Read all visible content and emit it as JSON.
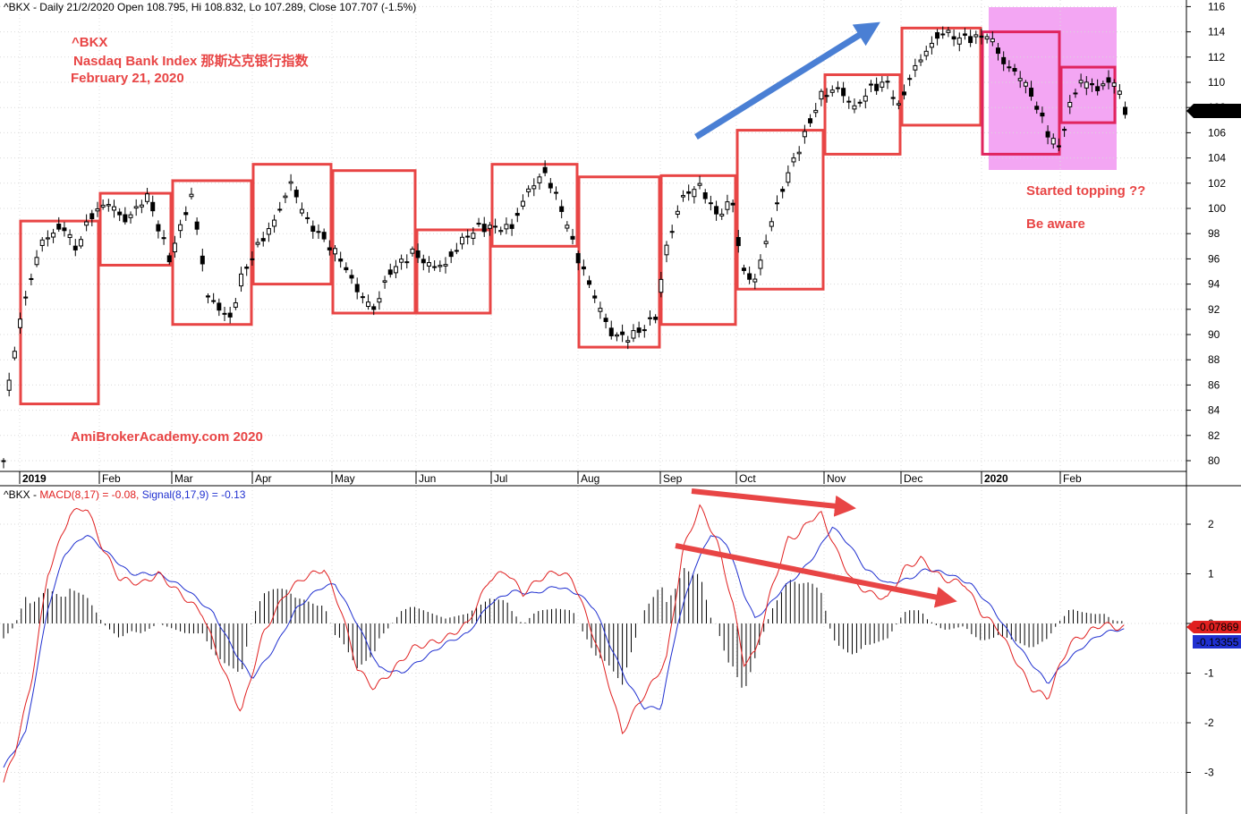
{
  "price_header": "^BKX - Daily 21/2/2020 Open 108.795, Hi 108.832, Lo 107.289, Close 107.707 (-1.5%)",
  "macd_header": {
    "prefix": "^BKX - ",
    "macd": "MACD(8,17) = -0.08, ",
    "signal": "Signal(8,17,9) = -0.13"
  },
  "annotations": {
    "ticker": "^BKX",
    "name": "Nasdaq Bank Index  那斯达克银行指数",
    "date": "February 21, 2020",
    "site": "AmiBrokerAcademy.com   2020",
    "topping": "Started topping  ??",
    "aware": "Be aware"
  },
  "last_price_label": "107.707",
  "macd_last_label": "-0.07869",
  "signal_last_label": "-0.13355",
  "colors": {
    "box": "#e84545",
    "box_recent": "#e0245e",
    "highlight": "#f3a6f3",
    "arrow_up": "#4a7fd4",
    "arrow_down": "#e84545",
    "annot_text": "#e84545",
    "macd_line": "#e02020",
    "signal_line": "#2030d0"
  },
  "months": [
    "2019",
    "Feb",
    "Mar",
    "Apr",
    "May",
    "Jun",
    "Jul",
    "Aug",
    "Sep",
    "Oct",
    "Nov",
    "Dec",
    "2020",
    "Feb"
  ],
  "price_axis_ticks": [
    "116",
    "114",
    "112",
    "110",
    "108",
    "106",
    "104",
    "102",
    "100",
    "98",
    "96",
    "94",
    "92",
    "90",
    "88",
    "86",
    "84",
    "82",
    "80"
  ],
  "macd_axis_ticks": [
    "2",
    "1",
    "0",
    "-1",
    "-2",
    "-3"
  ],
  "chart_data": [
    {
      "type": "candlestick",
      "title": "^BKX - Daily 21/2/2020",
      "ylim": [
        79,
        116.5
      ],
      "x_categories": [
        "2019",
        "Feb",
        "Mar",
        "Apr",
        "May",
        "Jun",
        "Jul",
        "Aug",
        "Sep",
        "Oct",
        "Nov",
        "Dec",
        "2020",
        "Feb"
      ],
      "monthly_ranges": [
        {
          "month": "2019",
          "low": 84.5,
          "high": 99
        },
        {
          "month": "Feb",
          "low": 95.5,
          "high": 101.2
        },
        {
          "month": "Mar",
          "low": 90.8,
          "high": 102.2
        },
        {
          "month": "Apr",
          "low": 94,
          "high": 103.5
        },
        {
          "month": "May",
          "low": 91.7,
          "high": 103
        },
        {
          "month": "Jun",
          "low": 91.7,
          "high": 98.3
        },
        {
          "month": "Jul",
          "low": 97,
          "high": 103.5
        },
        {
          "month": "Aug",
          "low": 89,
          "high": 102.5
        },
        {
          "month": "Sep",
          "low": 90.8,
          "high": 102.6
        },
        {
          "month": "Oct",
          "low": 93.6,
          "high": 106.2
        },
        {
          "month": "Nov",
          "low": 104.3,
          "high": 110.6
        },
        {
          "month": "Dec",
          "low": 106.6,
          "high": 114.3
        },
        {
          "month": "2020",
          "low": 104.3,
          "high": 114
        },
        {
          "month": "Feb",
          "low": 106.8,
          "high": 111.2
        }
      ],
      "last": {
        "open": 108.795,
        "high": 108.832,
        "low": 107.289,
        "close": 107.707
      },
      "series": [
        {
          "name": "^BKX",
          "keypoints": [
            [
              0,
              80
            ],
            [
              3,
              85
            ],
            [
              10,
              89
            ],
            [
              20,
              93
            ],
            [
              35,
              97.5
            ],
            [
              55,
              98.5
            ],
            [
              65,
              96.8
            ],
            [
              80,
              99.5
            ],
            [
              95,
              100.5
            ],
            [
              110,
              99
            ],
            [
              130,
              101
            ],
            [
              150,
              96
            ],
            [
              170,
              101
            ],
            [
              185,
              93
            ],
            [
              205,
              91.2
            ],
            [
              215,
              94.5
            ],
            [
              230,
              97
            ],
            [
              245,
              99
            ],
            [
              260,
              102
            ],
            [
              275,
              99
            ],
            [
              290,
              97.5
            ],
            [
              305,
              96
            ],
            [
              320,
              93.5
            ],
            [
              335,
              92
            ],
            [
              350,
              95
            ],
            [
              370,
              96.5
            ],
            [
              385,
              95.5
            ],
            [
              400,
              95.5
            ],
            [
              415,
              97.5
            ],
            [
              430,
              98.5
            ],
            [
              445,
              98.5
            ],
            [
              460,
              98.5
            ],
            [
              475,
              101.5
            ],
            [
              490,
              102.8
            ],
            [
              505,
              100
            ],
            [
              520,
              96
            ],
            [
              535,
              93
            ],
            [
              550,
              90
            ],
            [
              565,
              89.8
            ],
            [
              580,
              90.5
            ],
            [
              590,
              91.5
            ],
            [
              600,
              97
            ],
            [
              615,
              101
            ],
            [
              630,
              101.8
            ],
            [
              645,
              99.5
            ],
            [
              660,
              100.5
            ],
            [
              668,
              95
            ],
            [
              680,
              94.3
            ],
            [
              695,
              99
            ],
            [
              710,
              102.8
            ],
            [
              725,
              105.8
            ],
            [
              740,
              109
            ],
            [
              755,
              109.5
            ],
            [
              770,
              108
            ],
            [
              785,
              109.5
            ],
            [
              800,
              110
            ],
            [
              810,
              108
            ],
            [
              822,
              110.8
            ],
            [
              835,
              112.5
            ],
            [
              850,
              114
            ],
            [
              865,
              113.5
            ],
            [
              880,
              113.5
            ],
            [
              892,
              113.8
            ],
            [
              905,
              111.5
            ],
            [
              920,
              110.5
            ],
            [
              930,
              109
            ],
            [
              945,
              106
            ],
            [
              955,
              104.8
            ],
            [
              965,
              108.2
            ],
            [
              975,
              110.2
            ],
            [
              990,
              109.5
            ],
            [
              1005,
              110.2
            ],
            [
              1015,
              107.7
            ]
          ]
        }
      ]
    },
    {
      "type": "line",
      "title": "^BKX - MACD(8,17) = -0.08, Signal(8,17,9) = -0.13",
      "ylim": [
        -3.4,
        2.7
      ],
      "series": [
        {
          "name": "MACD(8,17)",
          "keypoints": [
            [
              0,
              -3.2
            ],
            [
              10,
              -2.6
            ],
            [
              25,
              -1.2
            ],
            [
              40,
              1
            ],
            [
              60,
              2.2
            ],
            [
              75,
              2.35
            ],
            [
              90,
              1.5
            ],
            [
              105,
              0.9
            ],
            [
              125,
              0.8
            ],
            [
              140,
              1
            ],
            [
              160,
              0.6
            ],
            [
              180,
              0.2
            ],
            [
              200,
              -1
            ],
            [
              215,
              -1.8
            ],
            [
              235,
              -0.2
            ],
            [
              255,
              0.6
            ],
            [
              270,
              0.9
            ],
            [
              290,
              1.1
            ],
            [
              305,
              0.3
            ],
            [
              320,
              -0.9
            ],
            [
              335,
              -1.3
            ],
            [
              350,
              -1
            ],
            [
              370,
              -0.5
            ],
            [
              385,
              -0.4
            ],
            [
              400,
              -0.3
            ],
            [
              420,
              0
            ],
            [
              440,
              0.9
            ],
            [
              455,
              1.05
            ],
            [
              470,
              0.6
            ],
            [
              485,
              0.9
            ],
            [
              500,
              1.05
            ],
            [
              515,
              0.9
            ],
            [
              530,
              0
            ],
            [
              545,
              -1
            ],
            [
              560,
              -2.2
            ],
            [
              575,
              -1.6
            ],
            [
              590,
              -1.1
            ],
            [
              600,
              -0.7
            ],
            [
              615,
              1.5
            ],
            [
              630,
              2.35
            ],
            [
              645,
              1.7
            ],
            [
              660,
              0.4
            ],
            [
              670,
              -0.8
            ],
            [
              680,
              -0.6
            ],
            [
              695,
              0.7
            ],
            [
              710,
              1.7
            ],
            [
              720,
              1.8
            ],
            [
              730,
              2.1
            ],
            [
              740,
              2.2
            ],
            [
              755,
              1.4
            ],
            [
              770,
              0.8
            ],
            [
              785,
              0.6
            ],
            [
              800,
              0.5
            ],
            [
              815,
              1.1
            ],
            [
              830,
              1.3
            ],
            [
              850,
              0.9
            ],
            [
              870,
              0.8
            ],
            [
              885,
              0.2
            ],
            [
              900,
              -0.1
            ],
            [
              915,
              -0.7
            ],
            [
              930,
              -1.3
            ],
            [
              945,
              -1.5
            ],
            [
              955,
              -0.9
            ],
            [
              965,
              -0.4
            ],
            [
              980,
              -0.2
            ],
            [
              995,
              0
            ],
            [
              1005,
              -0.08
            ]
          ]
        },
        {
          "name": "Signal(8,17,9)",
          "keypoints": [
            [
              0,
              -2.9
            ],
            [
              20,
              -2.2
            ],
            [
              40,
              0.3
            ],
            [
              55,
              1.4
            ],
            [
              75,
              1.8
            ],
            [
              95,
              1.4
            ],
            [
              115,
              1
            ],
            [
              140,
              1
            ],
            [
              165,
              0.7
            ],
            [
              190,
              0.2
            ],
            [
              210,
              -0.6
            ],
            [
              225,
              -1.1
            ],
            [
              245,
              -0.5
            ],
            [
              265,
              0.3
            ],
            [
              285,
              0.7
            ],
            [
              300,
              0.8
            ],
            [
              320,
              0
            ],
            [
              340,
              -0.9
            ],
            [
              360,
              -1
            ],
            [
              380,
              -0.7
            ],
            [
              400,
              -0.4
            ],
            [
              420,
              -0.2
            ],
            [
              440,
              0.4
            ],
            [
              460,
              0.65
            ],
            [
              480,
              0.6
            ],
            [
              500,
              0.75
            ],
            [
              520,
              0.6
            ],
            [
              535,
              0.3
            ],
            [
              550,
              -0.5
            ],
            [
              565,
              -1.2
            ],
            [
              580,
              -1.7
            ],
            [
              595,
              -1.7
            ],
            [
              610,
              0
            ],
            [
              625,
              1.1
            ],
            [
              640,
              1.8
            ],
            [
              655,
              1.6
            ],
            [
              670,
              0.6
            ],
            [
              680,
              0.1
            ],
            [
              690,
              0.3
            ],
            [
              705,
              0.7
            ],
            [
              720,
              1
            ],
            [
              735,
              1.4
            ],
            [
              750,
              1.95
            ],
            [
              765,
              1.6
            ],
            [
              780,
              1.1
            ],
            [
              800,
              0.8
            ],
            [
              820,
              0.9
            ],
            [
              835,
              1.1
            ],
            [
              855,
              1
            ],
            [
              875,
              0.8
            ],
            [
              895,
              0.3
            ],
            [
              910,
              -0.2
            ],
            [
              930,
              -0.8
            ],
            [
              945,
              -1.2
            ],
            [
              960,
              -0.8
            ],
            [
              975,
              -0.5
            ],
            [
              990,
              -0.25
            ],
            [
              1005,
              -0.13
            ]
          ]
        }
      ]
    }
  ]
}
